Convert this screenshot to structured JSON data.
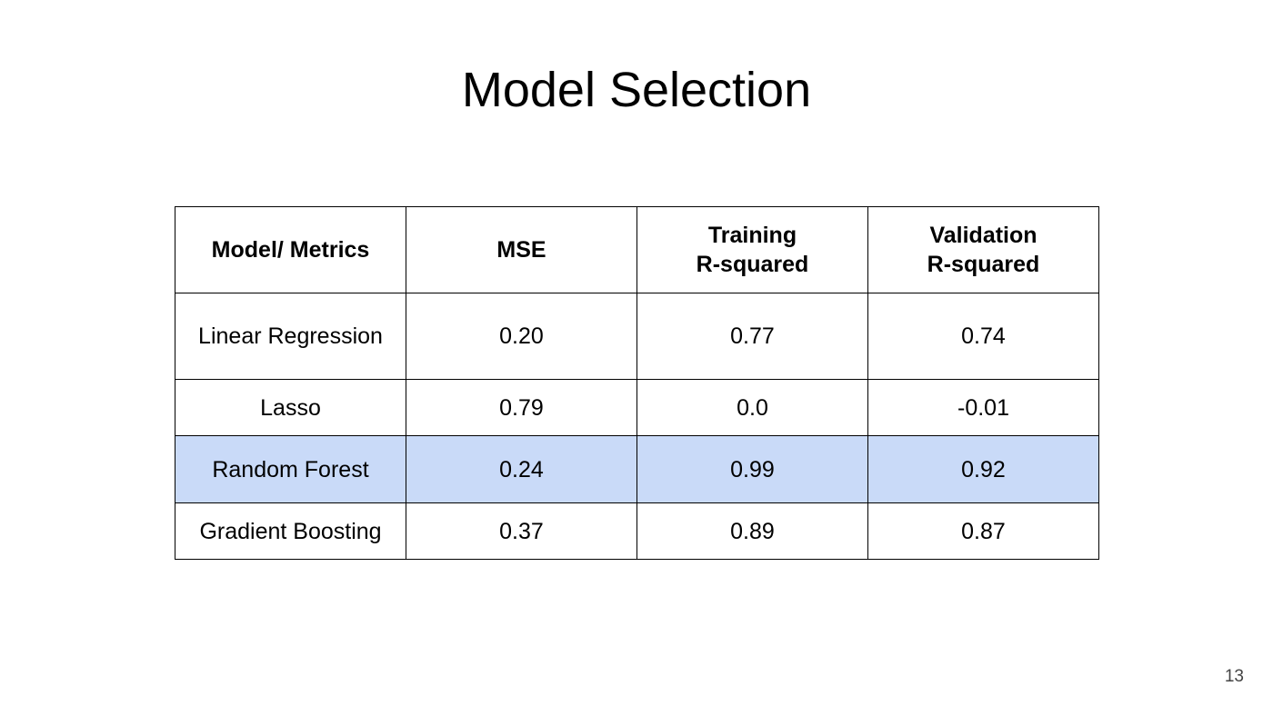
{
  "slide": {
    "title": "Model Selection",
    "page_number": "13"
  },
  "table": {
    "headers": [
      {
        "lines": [
          "Model/ Metrics"
        ]
      },
      {
        "lines": [
          "MSE"
        ]
      },
      {
        "lines": [
          "Training",
          "R-squared"
        ]
      },
      {
        "lines": [
          "Validation",
          "R-squared"
        ]
      }
    ],
    "rows": [
      {
        "cells": [
          "Linear Regression",
          "0.20",
          "0.77",
          "0.74"
        ],
        "highlighted": false
      },
      {
        "cells": [
          "Lasso",
          "0.79",
          "0.0",
          "-0.01"
        ],
        "highlighted": false
      },
      {
        "cells": [
          "Random Forest",
          "0.24",
          "0.99",
          "0.92"
        ],
        "highlighted": true
      },
      {
        "cells": [
          "Gradient Boosting",
          "0.37",
          "0.89",
          "0.87"
        ],
        "highlighted": false
      }
    ],
    "highlight_color": "#c9daf8"
  }
}
